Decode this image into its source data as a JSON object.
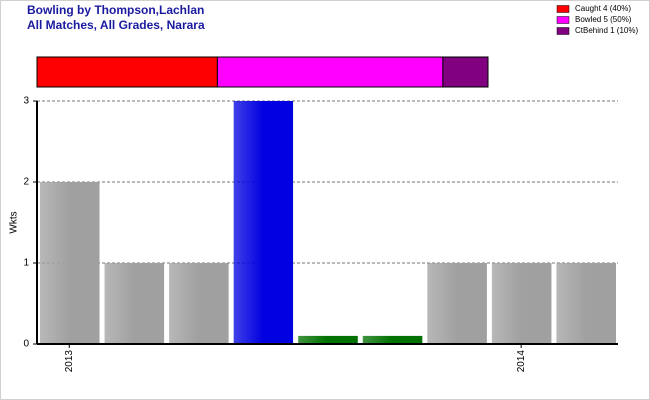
{
  "chart_data": [
    {
      "type": "stacked-bar",
      "title": "Bowling by Thompson,Lachlan",
      "subtitle": "All Matches, All Grades, Narara",
      "series": [
        {
          "name": "Caught 4 (40%)",
          "color": "#ff0000",
          "values": [
            4
          ]
        },
        {
          "name": "Bowled 5 (50%)",
          "color": "#ff00ff",
          "values": [
            5
          ]
        },
        {
          "name": "CtBehind 1 (10%)",
          "color": "#800080",
          "values": [
            1
          ]
        }
      ]
    },
    {
      "type": "bar",
      "y_label": "Wkts",
      "categories": [
        "2013",
        null,
        null,
        null,
        null,
        null,
        null,
        "2014",
        null
      ],
      "values": [
        2,
        1,
        1,
        3,
        0.1,
        0.1,
        1,
        1,
        1
      ],
      "colors": [
        "#a0a0a0",
        "#a0a0a0",
        "#a0a0a0",
        "#0000e0",
        "#007000",
        "#007000",
        "#a0a0a0",
        "#a0a0a0",
        "#a0a0a0"
      ],
      "ylim": [
        0,
        3
      ],
      "yticks": [
        0,
        1,
        2,
        3
      ],
      "grid": true
    }
  ]
}
